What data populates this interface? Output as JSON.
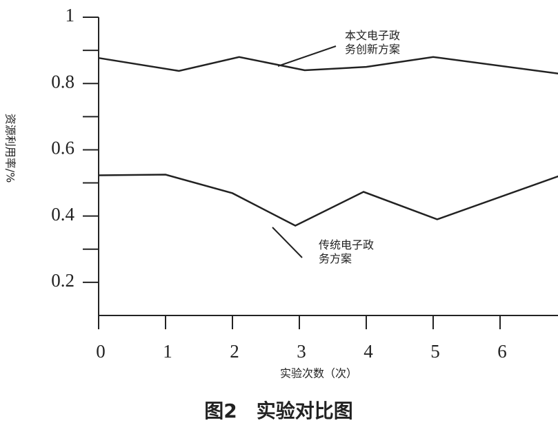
{
  "chart_data": {
    "type": "line",
    "caption": "图2　实验对比图",
    "x_label": "实验次数（次）",
    "y_label": "资源利用率/%",
    "xlim": [
      0,
      6.9
    ],
    "xticks": [
      0,
      1,
      2,
      3,
      4,
      5,
      6
    ],
    "ylim": [
      0.1,
      1
    ],
    "yticks": [
      0.2,
      0.4,
      0.6,
      0.8,
      1
    ],
    "y_minor_ticks": [
      0.3,
      0.5,
      0.7,
      0.9
    ],
    "grid": false,
    "series": [
      {
        "name": "本文电子政务创新方案",
        "color": "#222222",
        "x": [
          0,
          1.2,
          2.1,
          3.08,
          4,
          5,
          6.87
        ],
        "values": [
          0.877,
          0.838,
          0.88,
          0.84,
          0.85,
          0.88,
          0.83
        ]
      },
      {
        "name": "传统电子政务方案",
        "color": "#222222",
        "x": [
          0,
          1,
          2,
          2.94,
          3.96,
          5.06,
          6.87
        ],
        "values": [
          0.523,
          0.525,
          0.469,
          0.371,
          0.473,
          0.39,
          0.52
        ]
      }
    ]
  }
}
